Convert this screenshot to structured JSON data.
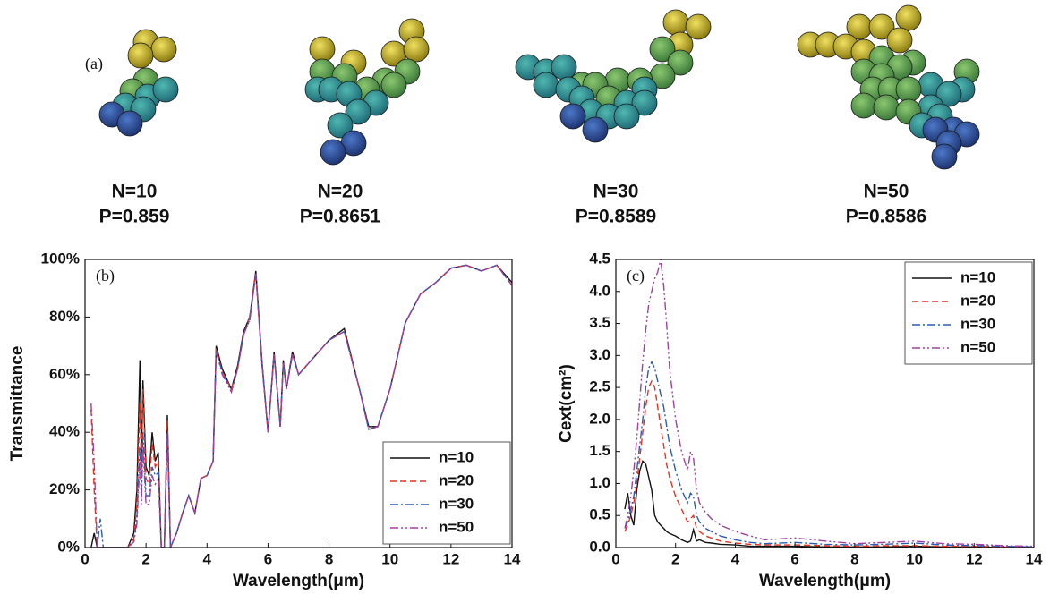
{
  "panel_a": {
    "label": "(a)",
    "clusters": [
      {
        "n": "N=10",
        "p": "P=0.859"
      },
      {
        "n": "N=20",
        "p": "P=0.8651"
      },
      {
        "n": "N=30",
        "p": "P=0.8589"
      },
      {
        "n": "N=50",
        "p": "P=0.8586"
      }
    ]
  },
  "chart_data": [
    {
      "type": "line",
      "panel_label": "(b)",
      "x_label": "Wavelength(μm)",
      "y_label": "Transmittance",
      "x": [
        0.2,
        0.3,
        0.4,
        0.5,
        0.6,
        0.8,
        1.0,
        1.2,
        1.4,
        1.6,
        1.7,
        1.8,
        1.85,
        1.9,
        2.0,
        2.1,
        2.2,
        2.3,
        2.4,
        2.5,
        2.6,
        2.7,
        2.8,
        3.0,
        3.2,
        3.4,
        3.6,
        3.8,
        4.0,
        4.2,
        4.3,
        4.5,
        4.8,
        5.0,
        5.2,
        5.4,
        5.6,
        5.8,
        6.0,
        6.2,
        6.4,
        6.5,
        6.6,
        6.8,
        7.0,
        7.5,
        8.0,
        8.5,
        9.0,
        9.3,
        9.6,
        10.0,
        10.5,
        11.0,
        11.5,
        12.0,
        12.5,
        13.0,
        13.5,
        14.0
      ],
      "series": [
        {
          "name": "n=10",
          "color": "#111111",
          "style": "solid",
          "values": [
            0,
            5,
            0,
            0,
            0,
            0,
            0,
            0,
            0,
            5,
            20,
            65,
            30,
            58,
            28,
            25,
            40,
            30,
            33,
            0,
            0,
            46,
            0,
            5,
            12,
            18,
            12,
            24,
            25,
            30,
            70,
            62,
            55,
            63,
            75,
            80,
            96,
            65,
            40,
            68,
            42,
            65,
            55,
            68,
            60,
            66,
            72,
            76,
            55,
            42,
            42,
            55,
            78,
            88,
            92,
            97,
            98,
            96,
            98,
            92
          ]
        },
        {
          "name": "n=20",
          "color": "#e8321e",
          "style": "dashed",
          "values": [
            48,
            20,
            0,
            0,
            0,
            0,
            0,
            0,
            0,
            3,
            15,
            50,
            25,
            55,
            24,
            22,
            36,
            28,
            30,
            0,
            0,
            44,
            0,
            5,
            12,
            18,
            12,
            24,
            25,
            30,
            69,
            61,
            55,
            62,
            74,
            80,
            95,
            64,
            40,
            67,
            42,
            64,
            55,
            67,
            60,
            66,
            72,
            75,
            55,
            41,
            42,
            55,
            78,
            88,
            92,
            97,
            98,
            96,
            98,
            91
          ]
        },
        {
          "name": "n=30",
          "color": "#2a5cb8",
          "style": "dashdot",
          "values": [
            0,
            0,
            0,
            10,
            0,
            0,
            0,
            0,
            0,
            2,
            10,
            35,
            18,
            40,
            18,
            18,
            28,
            25,
            26,
            0,
            0,
            40,
            0,
            5,
            12,
            18,
            12,
            24,
            25,
            30,
            68,
            61,
            54,
            62,
            74,
            79,
            95,
            64,
            40,
            67,
            42,
            64,
            55,
            67,
            60,
            66,
            72,
            75,
            55,
            41,
            42,
            55,
            78,
            88,
            92,
            97,
            98,
            96,
            98,
            91
          ]
        },
        {
          "name": "n=50",
          "color": "#a040a0",
          "style": "dashdotdot",
          "values": [
            50,
            30,
            0,
            0,
            0,
            0,
            0,
            0,
            0,
            2,
            8,
            30,
            15,
            35,
            15,
            15,
            25,
            22,
            24,
            0,
            0,
            38,
            0,
            5,
            12,
            18,
            12,
            24,
            25,
            30,
            68,
            60,
            54,
            62,
            74,
            79,
            95,
            64,
            40,
            67,
            42,
            64,
            55,
            67,
            60,
            66,
            72,
            75,
            55,
            41,
            42,
            55,
            78,
            88,
            92,
            97,
            98,
            96,
            98,
            91
          ]
        }
      ],
      "xlim": [
        0,
        14
      ],
      "xticks": [
        0,
        2,
        4,
        6,
        8,
        10,
        12,
        14
      ],
      "ylim": [
        0,
        100
      ],
      "yticks": [
        {
          "value": 0,
          "label": "0%"
        },
        {
          "value": 20,
          "label": "20%"
        },
        {
          "value": 40,
          "label": "40%"
        },
        {
          "value": 60,
          "label": "60%"
        },
        {
          "value": 80,
          "label": "80%"
        },
        {
          "value": 100,
          "label": "100%"
        }
      ],
      "legend": "lower right"
    },
    {
      "type": "line",
      "panel_label": "(c)",
      "x_label": "Wavelength(μm)",
      "y_label": "Cext(cm²)",
      "x": [
        0.3,
        0.4,
        0.5,
        0.6,
        0.7,
        0.8,
        0.9,
        1.0,
        1.1,
        1.2,
        1.3,
        1.4,
        1.5,
        1.6,
        1.7,
        1.8,
        2.0,
        2.2,
        2.4,
        2.5,
        2.6,
        2.7,
        2.8,
        3.0,
        3.2,
        3.5,
        4.0,
        4.5,
        5,
        6,
        7,
        8,
        9,
        10,
        11,
        12,
        13,
        14
      ],
      "series": [
        {
          "name": "n=10",
          "color": "#111111",
          "style": "solid",
          "values": [
            0.6,
            0.85,
            0.5,
            0.35,
            0.9,
            1.2,
            1.35,
            1.3,
            1.1,
            0.9,
            0.5,
            0.4,
            0.35,
            0.3,
            0.25,
            0.22,
            0.18,
            0.12,
            0.08,
            0.1,
            0.28,
            0.1,
            0.12,
            0.08,
            0.07,
            0.05,
            0.04,
            0.02,
            0.02,
            0.02,
            0.01,
            0.01,
            0.01,
            0.02,
            0.01,
            0.01,
            0,
            0
          ]
        },
        {
          "name": "n=20",
          "color": "#e8321e",
          "style": "dashed",
          "values": [
            0.25,
            0.35,
            0.5,
            0.7,
            1.0,
            1.4,
            1.8,
            2.2,
            2.5,
            2.6,
            2.5,
            2.2,
            1.9,
            1.6,
            1.3,
            1.1,
            0.8,
            0.6,
            0.4,
            0.45,
            0.5,
            0.3,
            0.25,
            0.18,
            0.15,
            0.1,
            0.07,
            0.05,
            0.04,
            0.04,
            0.03,
            0.02,
            0.03,
            0.03,
            0.02,
            0.02,
            0.01,
            0
          ]
        },
        {
          "name": "n=30",
          "color": "#2a5cb8",
          "style": "dashdot",
          "values": [
            0.3,
            0.4,
            0.6,
            0.8,
            1.2,
            1.6,
            2.0,
            2.5,
            2.8,
            2.9,
            2.8,
            2.6,
            2.4,
            2.2,
            1.9,
            1.6,
            1.2,
            0.9,
            0.7,
            0.85,
            0.8,
            0.5,
            0.4,
            0.3,
            0.25,
            0.18,
            0.12,
            0.08,
            0.06,
            0.08,
            0.05,
            0.04,
            0.05,
            0.07,
            0.04,
            0.03,
            0.02,
            0.01
          ]
        },
        {
          "name": "n=50",
          "color": "#a040a0",
          "style": "dashdotdot",
          "values": [
            0.3,
            0.5,
            0.8,
            1.2,
            1.7,
            2.3,
            2.9,
            3.4,
            3.8,
            4.0,
            4.2,
            4.3,
            4.5,
            4.1,
            3.5,
            2.8,
            2.0,
            1.5,
            1.2,
            1.5,
            1.4,
            0.9,
            0.7,
            0.55,
            0.45,
            0.35,
            0.25,
            0.18,
            0.12,
            0.15,
            0.1,
            0.06,
            0.08,
            0.1,
            0.06,
            0.05,
            0.03,
            0.02
          ]
        }
      ],
      "xlim": [
        0,
        14
      ],
      "xticks": [
        0,
        2,
        4,
        6,
        8,
        10,
        12,
        14
      ],
      "ylim": [
        0,
        4.5
      ],
      "yticks": [
        {
          "value": 0,
          "label": "0.0"
        },
        0.5,
        {
          "value": 1,
          "label": "1.0"
        },
        1.5,
        {
          "value": 2,
          "label": "2.0"
        },
        2.5,
        {
          "value": 3,
          "label": "3.0"
        },
        3.5,
        {
          "value": 4,
          "label": "4.0"
        },
        4.5
      ],
      "legend": "upper right"
    }
  ]
}
